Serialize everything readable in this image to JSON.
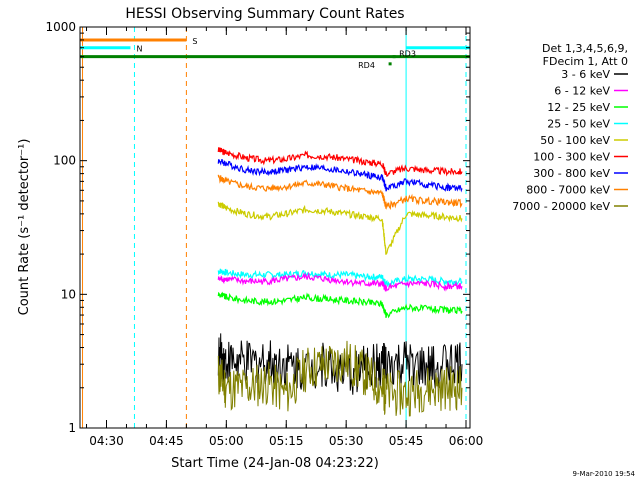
{
  "chart_data": {
    "type": "line",
    "title": "HESSI Observing Summary Count Rates",
    "xlabel": "Start Time (24-Jan-08 04:23:22)",
    "ylabel": "Count Rate (s⁻¹ detector⁻¹)",
    "yscale": "log",
    "ylim": [
      1,
      1000
    ],
    "xlim": [
      "04:23:22",
      "06:01:00"
    ],
    "x_ticks": [
      "04:30",
      "04:45",
      "05:00",
      "05:15",
      "05:30",
      "05:45",
      "06:00"
    ],
    "y_ticks": [
      "1",
      "10",
      "100",
      "1000"
    ],
    "grid": false,
    "legend": {
      "position": "right",
      "header": [
        "Det 1,3,4,5,6,9,",
        "FDecim 1, Att 0"
      ],
      "entries": [
        {
          "label": "3 - 6 keV",
          "color": "#000000"
        },
        {
          "label": "6 - 12 keV",
          "color": "#ff00ff"
        },
        {
          "label": "12 - 25 keV",
          "color": "#00ff00"
        },
        {
          "label": "25 - 50 keV",
          "color": "#00ffff"
        },
        {
          "label": "50 - 100 keV",
          "color": "#cccc00"
        },
        {
          "label": "100 - 300 keV",
          "color": "#ff0000"
        },
        {
          "label": "300 - 800 keV",
          "color": "#0000ff"
        },
        {
          "label": "800 - 7000 keV",
          "color": "#ff8000"
        },
        {
          "label": "7000 - 20000 keV",
          "color": "#808000"
        }
      ]
    },
    "series": [
      {
        "name": "100 - 300 keV",
        "color": "#ff0000",
        "x": [
          "04:58",
          "05:00",
          "05:05",
          "05:10",
          "05:15",
          "05:20",
          "05:25",
          "05:30",
          "05:35",
          "05:39",
          "05:40",
          "05:45",
          "05:50",
          "05:55",
          "05:59"
        ],
        "y": [
          120,
          115,
          105,
          100,
          103,
          110,
          108,
          103,
          98,
          95,
          80,
          88,
          85,
          83,
          83
        ]
      },
      {
        "name": "300 - 800 keV",
        "color": "#0000ff",
        "x": [
          "04:58",
          "05:00",
          "05:05",
          "05:10",
          "05:15",
          "05:20",
          "05:25",
          "05:30",
          "05:35",
          "05:39",
          "05:40",
          "05:45",
          "05:50",
          "05:55",
          "05:59"
        ],
        "y": [
          100,
          95,
          85,
          82,
          85,
          90,
          87,
          83,
          78,
          75,
          62,
          70,
          66,
          63,
          62
        ]
      },
      {
        "name": "800 - 7000 keV",
        "color": "#ff8000",
        "x": [
          "04:58",
          "05:00",
          "05:05",
          "05:10",
          "05:15",
          "05:20",
          "05:25",
          "05:30",
          "05:35",
          "05:39",
          "05:40",
          "05:45",
          "05:50",
          "05:55",
          "05:59"
        ],
        "y": [
          75,
          70,
          64,
          62,
          64,
          68,
          66,
          62,
          59,
          57,
          45,
          52,
          50,
          49,
          48
        ]
      },
      {
        "name": "50 - 100 keV",
        "color": "#cccc00",
        "x": [
          "04:58",
          "05:00",
          "05:05",
          "05:10",
          "05:15",
          "05:20",
          "05:25",
          "05:30",
          "05:35",
          "05:39",
          "05:40",
          "05:45",
          "05:50",
          "05:55",
          "05:59"
        ],
        "y": [
          48,
          44,
          40,
          38,
          40,
          43,
          42,
          40,
          38,
          37,
          20,
          40,
          39,
          38,
          37
        ]
      },
      {
        "name": "25 - 50 keV",
        "color": "#00ffff",
        "x": [
          "04:58",
          "05:00",
          "05:05",
          "05:10",
          "05:15",
          "05:20",
          "05:25",
          "05:30",
          "05:35",
          "05:39",
          "05:40",
          "05:45",
          "05:50",
          "05:55",
          "05:59"
        ],
        "y": [
          15,
          14.5,
          14,
          14,
          14,
          14.5,
          14,
          14,
          13.5,
          13.5,
          12,
          13,
          13,
          12.5,
          12.5
        ]
      },
      {
        "name": "6 - 12 keV",
        "color": "#ff00ff",
        "x": [
          "04:58",
          "05:00",
          "05:05",
          "05:10",
          "05:15",
          "05:20",
          "05:25",
          "05:30",
          "05:35",
          "05:39",
          "05:40",
          "05:45",
          "05:50",
          "05:55",
          "05:59"
        ],
        "y": [
          13,
          13,
          12.5,
          12.5,
          13,
          13.5,
          13,
          12.5,
          12,
          12,
          11,
          12,
          12,
          11.5,
          11.5
        ]
      },
      {
        "name": "12 - 25 keV",
        "color": "#00ff00",
        "x": [
          "04:58",
          "05:00",
          "05:05",
          "05:10",
          "05:15",
          "05:20",
          "05:25",
          "05:30",
          "05:35",
          "05:39",
          "05:40",
          "05:45",
          "05:50",
          "05:55",
          "05:59"
        ],
        "y": [
          10,
          9.5,
          9,
          8.8,
          9,
          9.5,
          9.2,
          9,
          8.7,
          8.5,
          7,
          8,
          7.8,
          7.6,
          7.5
        ]
      },
      {
        "name": "3 - 6 keV",
        "color": "#000000",
        "x": [
          "04:58",
          "05:00",
          "05:05",
          "05:10",
          "05:15",
          "05:20",
          "05:25",
          "05:30",
          "05:35",
          "05:39",
          "05:40",
          "05:45",
          "05:50",
          "05:55",
          "05:59"
        ],
        "y": [
          3.5,
          3.2,
          3,
          3.2,
          3,
          2.8,
          3,
          2.5,
          2.8,
          3,
          2.8,
          3,
          2.7,
          3,
          3
        ]
      },
      {
        "name": "7000 - 20000 keV",
        "color": "#808000",
        "x": [
          "04:58",
          "05:00",
          "05:05",
          "05:10",
          "05:15",
          "05:20",
          "05:25",
          "05:30",
          "05:35",
          "05:39",
          "05:40",
          "05:45",
          "05:50",
          "05:55",
          "05:59"
        ],
        "y": [
          2.5,
          2,
          2,
          2.2,
          1.8,
          2.8,
          3,
          3.2,
          2.5,
          2,
          1.8,
          1.8,
          2,
          2,
          2
        ]
      }
    ],
    "flags": [
      {
        "label": "S",
        "color": "#ff8000",
        "y": 800,
        "x_start": "04:23:22",
        "x_end": "04:50"
      },
      {
        "label": "N",
        "color": "#00ffff",
        "y": 700,
        "x_start": "04:23:22",
        "x_end": "04:36"
      },
      {
        "color": "#00ffff",
        "y": 700,
        "x_start": "05:45",
        "x_end": "06:01"
      },
      {
        "color": "#008000",
        "y": 600,
        "x_start": "04:23:22",
        "x_end": "06:01"
      }
    ],
    "markers": [
      {
        "label": "RD3",
        "color": "#008000",
        "x": "05:42",
        "y": 600
      },
      {
        "label": "RD4",
        "color": "#008000",
        "x": "05:41",
        "y": 530
      }
    ],
    "vertical_lines": [
      {
        "x": "04:24",
        "color": "#ff8000",
        "style": "solid"
      },
      {
        "x": "04:37",
        "color": "#00ffff",
        "style": "dashed"
      },
      {
        "x": "04:50",
        "color": "#ff8000",
        "style": "dashed"
      },
      {
        "x": "05:45",
        "color": "#00ffff",
        "style": "solid"
      },
      {
        "x": "06:00",
        "color": "#00ffff",
        "style": "dashed"
      }
    ],
    "footer_date": "9-Mar-2010 19:54"
  }
}
